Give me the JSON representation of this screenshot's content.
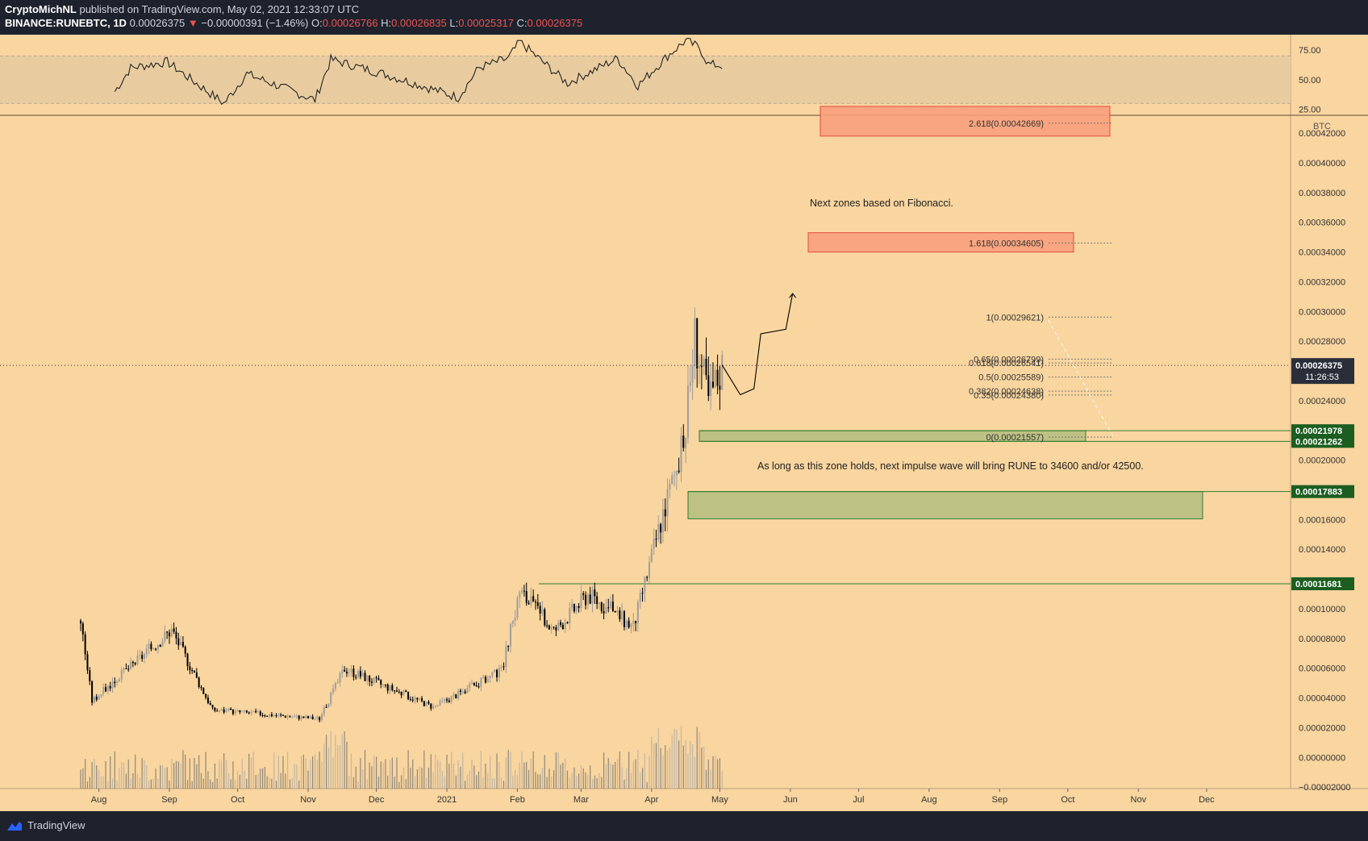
{
  "header": {
    "author": "CryptoMichNL",
    "published": "published on TradingView.com, May 02, 2021 12:33:07 UTC",
    "symbol": "BINANCE:RUNEBTC, 1D",
    "last": "0.00026375",
    "arrow": "▼",
    "change": "−0.00000391 (−1.46%)",
    "o_label": "O:",
    "o": "0.00026766",
    "h_label": "H:",
    "h": "0.00026835",
    "l_label": "L:",
    "l": "0.00025317",
    "c_label": "C:",
    "c": "0.00026375"
  },
  "brand": {
    "name": "TradingView"
  },
  "colors": {
    "background": "#f9d59f",
    "rsi_band": "#e8cc9f",
    "up": "#9e9e9e",
    "down": "#000000",
    "zone_green": "#a8b97a",
    "zone_red": "#f8a07c",
    "price_tag": "#2a2e39",
    "level_tag": "#1b5e20"
  },
  "chart_data": [
    {
      "type": "candlestick",
      "title": "RUNEBTC 1D",
      "unit": "BTC",
      "y_ticks": [
        "0.00042000",
        "0.00040000",
        "0.00038000",
        "0.00036000",
        "0.00034000",
        "0.00032000",
        "0.00030000",
        "0.00028000",
        "0.00024000",
        "0.00020000",
        "0.00016000",
        "0.00014000",
        "0.00010000",
        "0.00008000",
        "0.00006000",
        "0.00004000",
        "0.00002000",
        "0.00000000",
        "−0.00002000"
      ],
      "y_tick_values": [
        0.00042,
        0.0004,
        0.00038,
        0.00036,
        0.00034,
        0.00032,
        0.0003,
        0.00028,
        0.00024,
        0.0002,
        0.00016,
        0.00014,
        0.0001,
        8e-05,
        6e-05,
        4e-05,
        2e-05,
        0,
        -2e-05
      ],
      "ylim": [
        -2.1e-05,
        0.000432
      ],
      "x_ticks": [
        "Aug",
        "Sep",
        "Oct",
        "Nov",
        "Dec",
        "2021",
        "Feb",
        "Mar",
        "Apr",
        "May",
        "Jun",
        "Jul",
        "Aug",
        "Sep",
        "Oct",
        "Nov",
        "Dec"
      ],
      "x_tick_days": [
        8,
        39,
        69,
        100,
        130,
        161,
        192,
        220,
        251,
        281,
        312,
        342,
        373,
        404,
        434,
        465,
        495
      ],
      "last_price_tag": {
        "value": "0.00026375",
        "price": 0.00026375,
        "countdown": "11:26:53"
      },
      "level_tags": [
        {
          "value": "0.00021978",
          "price": 0.00021978
        },
        {
          "value": "0.00021262",
          "price": 0.00021262
        },
        {
          "value": "0.00017883",
          "price": 0.00017883
        },
        {
          "value": "0.00011681",
          "price": 0.00011681
        }
      ],
      "key_points": [
        {
          "day": 0,
          "price": 9.2e-05
        },
        {
          "day": 5,
          "price": 3.8e-05
        },
        {
          "day": 40,
          "price": 8.6e-05
        },
        {
          "day": 58,
          "price": 3.2e-05
        },
        {
          "day": 105,
          "price": 2.6e-05
        },
        {
          "day": 116,
          "price": 6e-05
        },
        {
          "day": 155,
          "price": 3.4e-05
        },
        {
          "day": 185,
          "price": 5.8e-05
        },
        {
          "day": 193,
          "price": 0.000112
        },
        {
          "day": 208,
          "price": 8.5e-05
        },
        {
          "day": 223,
          "price": 0.00011
        },
        {
          "day": 243,
          "price": 8.8e-05
        },
        {
          "day": 256,
          "price": 0.000165
        },
        {
          "day": 265,
          "price": 0.00021
        },
        {
          "day": 270,
          "price": 0.000285
        },
        {
          "day": 276,
          "price": 0.00024
        },
        {
          "day": 282,
          "price": 0.000264
        }
      ],
      "volume_note": "volume histogram along bottom",
      "fibonacci": [
        {
          "label": "2.618(0.00042669)",
          "price": 0.00042669
        },
        {
          "label": "1.618(0.00034605)",
          "price": 0.00034605
        },
        {
          "label": "1(0.00029621)",
          "price": 0.00029621
        },
        {
          "label": "0.65(0.00026799)",
          "price": 0.00026799
        },
        {
          "label": "0.618(0.00026541)",
          "price": 0.00026541
        },
        {
          "label": "0.5(0.00025589)",
          "price": 0.00025589
        },
        {
          "label": "0.382(0.00024638)",
          "price": 0.00024638
        },
        {
          "label": "0.35(0.00024380)",
          "price": 0.0002438
        },
        {
          "label": "0(0.00021557)",
          "price": 0.00021557
        }
      ],
      "zones": [
        {
          "kind": "target",
          "top": 0.000438,
          "bottom": 0.000418
        },
        {
          "kind": "target",
          "top": 0.000353,
          "bottom": 0.00034
        },
        {
          "kind": "support",
          "top": 0.00021978,
          "bottom": 0.00021262
        },
        {
          "kind": "support",
          "top": 0.00017883,
          "bottom": 0.0001605
        }
      ],
      "annotations": [
        {
          "text": "Next zones based on Fibonacci.",
          "day": 316,
          "price": 0.000373
        },
        {
          "text": "As long as this zone holds, next impulse wave will bring RUNE to 34600 and/or 42500.",
          "day": 306,
          "price": 0.000196
        }
      ]
    },
    {
      "type": "line",
      "title": "RSI",
      "y_ticks": [
        "75.00",
        "50.00",
        "25.00"
      ],
      "y_tick_values": [
        75,
        50,
        25
      ],
      "ylim": [
        20,
        88
      ],
      "band": [
        30,
        70
      ],
      "key_points": [
        {
          "day": 15,
          "value": 40
        },
        {
          "day": 22,
          "value": 60
        },
        {
          "day": 38,
          "value": 65
        },
        {
          "day": 63,
          "value": 30
        },
        {
          "day": 73,
          "value": 55
        },
        {
          "day": 103,
          "value": 33
        },
        {
          "day": 110,
          "value": 67
        },
        {
          "day": 133,
          "value": 55
        },
        {
          "day": 150,
          "value": 45
        },
        {
          "day": 166,
          "value": 35
        },
        {
          "day": 175,
          "value": 60
        },
        {
          "day": 188,
          "value": 68
        },
        {
          "day": 193,
          "value": 82
        },
        {
          "day": 214,
          "value": 47
        },
        {
          "day": 236,
          "value": 68
        },
        {
          "day": 245,
          "value": 45
        },
        {
          "day": 258,
          "value": 70
        },
        {
          "day": 266,
          "value": 83
        },
        {
          "day": 272,
          "value": 77
        },
        {
          "day": 276,
          "value": 63
        },
        {
          "day": 282,
          "value": 62
        }
      ]
    }
  ]
}
